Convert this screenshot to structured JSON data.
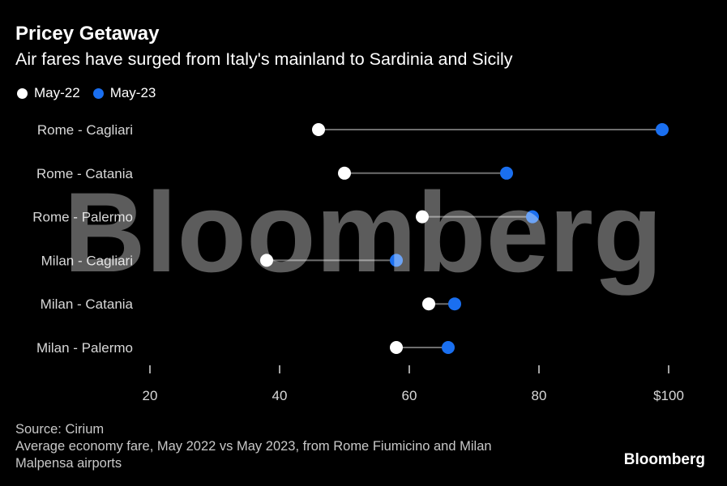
{
  "header": {
    "title": "Pricey Getaway",
    "subtitle": "Air fares have surged from Italy's mainland to Sardinia and Sicily"
  },
  "watermark": "Bloomberg",
  "colors": {
    "may22": "#ffffff",
    "may23": "#1a6ff0",
    "connector": "#6e6e6e",
    "axis": "#d8d8d8"
  },
  "chart_data": {
    "type": "dumbbell",
    "title": "Pricey Getaway",
    "subtitle": "Air fares have surged from Italy's mainland to Sardinia and Sicily",
    "xlim": [
      12,
      102
    ],
    "ticks": [
      20,
      40,
      60,
      80,
      100
    ],
    "tick_labels": [
      "20",
      "40",
      "60",
      "80",
      "$100"
    ],
    "categories": [
      "Rome - Cagliari",
      "Rome - Catania",
      "Rome - Palermo",
      "Milan - Cagliari",
      "Milan - Catania",
      "Milan - Palermo"
    ],
    "series": [
      {
        "name": "May-22",
        "values": [
          46,
          50,
          62,
          38,
          63,
          58
        ]
      },
      {
        "name": "May-23",
        "values": [
          99,
          75,
          79,
          58,
          67,
          66
        ]
      }
    ],
    "legend": [
      "May-22",
      "May-23"
    ],
    "legend_position": "top-left"
  },
  "footer": {
    "source": "Source: Cirium",
    "note_line1": "Average economy fare, May 2022 vs May 2023, from Rome Fiumicino and Milan",
    "note_line2": "Malpensa airports",
    "brand": "Bloomberg"
  }
}
